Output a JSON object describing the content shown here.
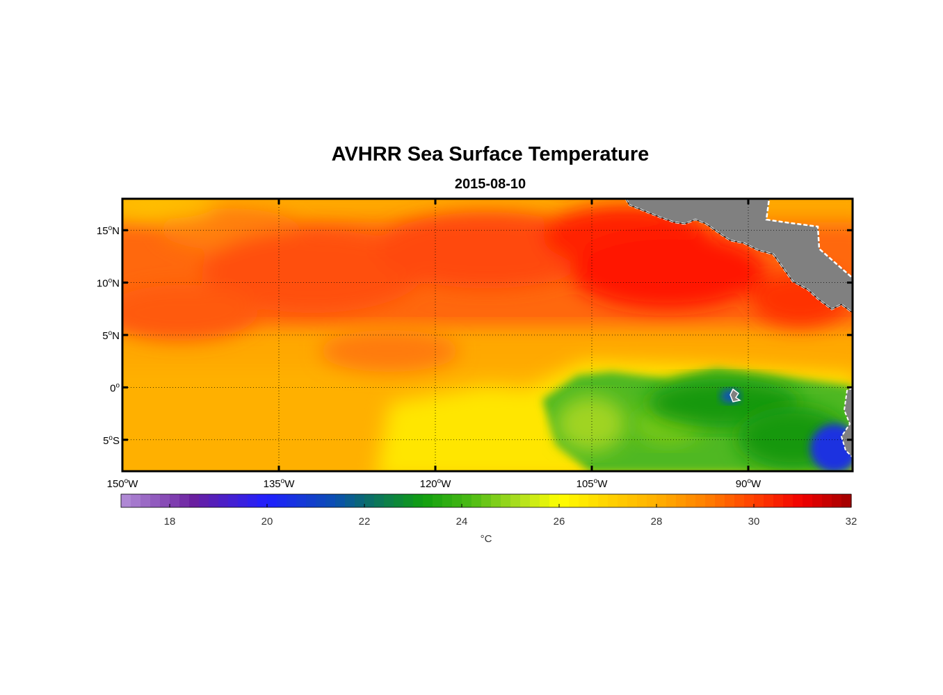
{
  "map": {
    "title": "AVHRR Sea Surface Temperature",
    "subtitle": "2015-08-10",
    "extent": {
      "lon_min": -150,
      "lon_max": -80,
      "lat_min": -8,
      "lat_max": 18
    },
    "lat_ticks": [
      {
        "value": 15,
        "num": "15",
        "sup": "o",
        "hem": "N"
      },
      {
        "value": 10,
        "num": "10",
        "sup": "o",
        "hem": "N"
      },
      {
        "value": 5,
        "num": "5",
        "sup": "o",
        "hem": "N"
      },
      {
        "value": 0,
        "num": "0",
        "sup": "o",
        "hem": ""
      },
      {
        "value": -5,
        "num": "5",
        "sup": "o",
        "hem": "S"
      }
    ],
    "lon_ticks": [
      {
        "value": -150,
        "num": "150",
        "sup": "o",
        "hem": "W"
      },
      {
        "value": -135,
        "num": "135",
        "sup": "o",
        "hem": "W"
      },
      {
        "value": -120,
        "num": "120",
        "sup": "o",
        "hem": "W"
      },
      {
        "value": -105,
        "num": "105",
        "sup": "o",
        "hem": "W"
      },
      {
        "value": -90,
        "num": "90",
        "sup": "o",
        "hem": "W"
      }
    ],
    "land_color": "#808080",
    "coast_color": "#ffffff"
  },
  "colorbar": {
    "min": 17,
    "max": 32,
    "ticks": [
      "18",
      "20",
      "22",
      "24",
      "26",
      "28",
      "30",
      "32"
    ],
    "unit_label": "°C",
    "stops": [
      {
        "t": 17,
        "color": "#b48fd8"
      },
      {
        "t": 18.5,
        "color": "#6a1fa0"
      },
      {
        "t": 20,
        "color": "#2020ff"
      },
      {
        "t": 21.4,
        "color": "#0a4fb0"
      },
      {
        "t": 22,
        "color": "#0a6a70"
      },
      {
        "t": 23.2,
        "color": "#109e10"
      },
      {
        "t": 24.2,
        "color": "#4cbb14"
      },
      {
        "t": 25.2,
        "color": "#b0e020"
      },
      {
        "t": 26,
        "color": "#ffff00"
      },
      {
        "t": 27,
        "color": "#ffd200"
      },
      {
        "t": 28,
        "color": "#ffb000"
      },
      {
        "t": 29,
        "color": "#ff8000"
      },
      {
        "t": 30,
        "color": "#ff4000"
      },
      {
        "t": 31,
        "color": "#f00000"
      },
      {
        "t": 32,
        "color": "#a00000"
      }
    ]
  }
}
